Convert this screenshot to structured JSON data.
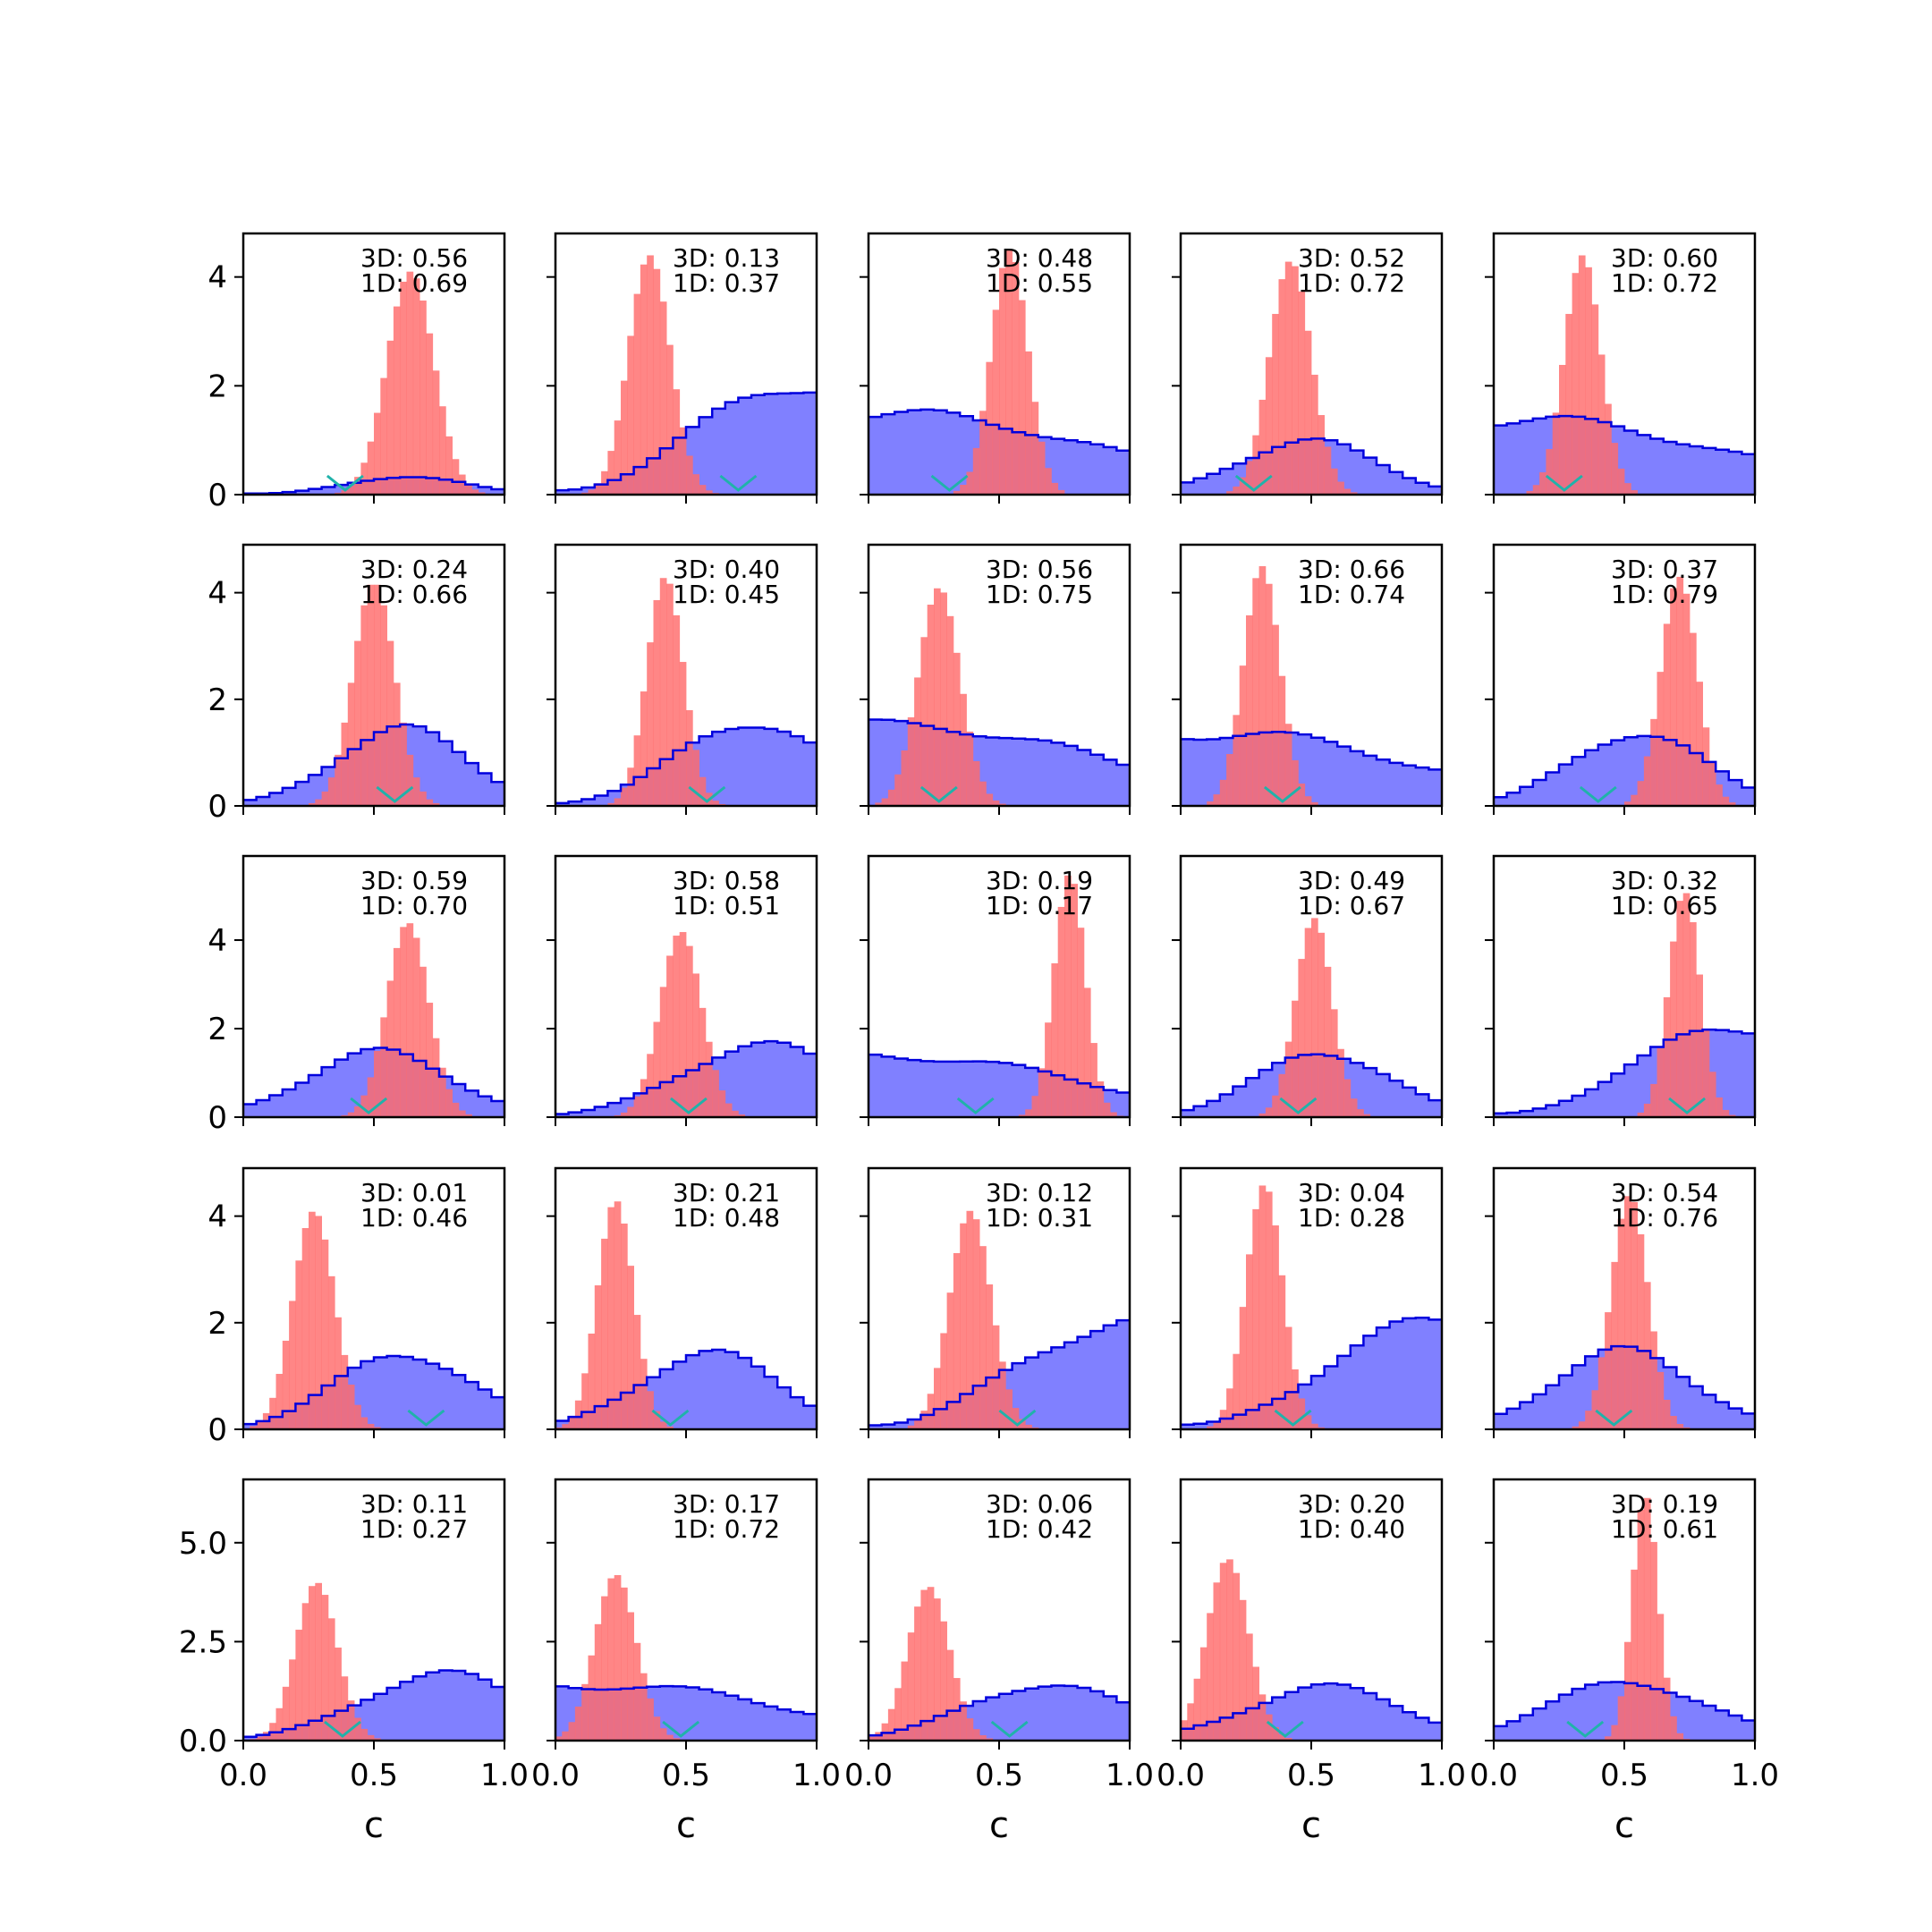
{
  "figure": {
    "xlabel": "c",
    "x_ticks": [
      "0.0",
      "0.5",
      "1.0"
    ],
    "xlim": [
      0,
      1
    ],
    "rows": [
      {
        "ylim": [
          0,
          4.8
        ],
        "y_ticks": [
          {
            "v": 0,
            "label": "0"
          },
          {
            "v": 2,
            "label": "2"
          },
          {
            "v": 4,
            "label": "4"
          }
        ]
      },
      {
        "ylim": [
          0,
          4.9
        ],
        "y_ticks": [
          {
            "v": 0,
            "label": "0"
          },
          {
            "v": 2,
            "label": "2"
          },
          {
            "v": 4,
            "label": "4"
          }
        ]
      },
      {
        "ylim": [
          0,
          5.9
        ],
        "y_ticks": [
          {
            "v": 0,
            "label": "0"
          },
          {
            "v": 2,
            "label": "2"
          },
          {
            "v": 4,
            "label": "4"
          }
        ]
      },
      {
        "ylim": [
          0,
          4.9
        ],
        "y_ticks": [
          {
            "v": 0,
            "label": "0"
          },
          {
            "v": 2,
            "label": "2"
          },
          {
            "v": 4,
            "label": "4"
          }
        ]
      },
      {
        "ylim": [
          0,
          6.6
        ],
        "y_ticks": [
          {
            "v": 0,
            "label": "0.0"
          },
          {
            "v": 2.5,
            "label": "2.5"
          },
          {
            "v": 5,
            "label": "5.0"
          }
        ]
      }
    ],
    "colors": {
      "prior_fill": "#8080ff",
      "prior_edge": "#0000dd",
      "posterior_fill": "#ff6b6b",
      "overlap": "#b34070",
      "marker": "#20b2aa",
      "axis": "#000000"
    }
  },
  "chart_data": [
    {
      "type": "histogram",
      "panel": "r1c1",
      "row": 0,
      "col": 0,
      "annotation_3d": "3D: 0.56",
      "annotation_1d": "1D: 0.69",
      "marker_x": 0.39,
      "prior_shape": [
        0,
        0.62,
        0.22,
        0.34
      ],
      "posterior": {
        "mean": 0.64,
        "sd": 0.09,
        "peak": 4.1
      }
    },
    {
      "type": "histogram",
      "panel": "r1c2",
      "row": 0,
      "col": 1,
      "annotation_3d": "3D: 0.13",
      "annotation_1d": "1D: 0.37",
      "marker_x": 0.7,
      "prior_shape": [
        1,
        0.95,
        0.36,
        0.08
      ],
      "posterior": {
        "mean": 0.36,
        "sd": 0.08,
        "peak": 4.4
      }
    },
    {
      "type": "histogram",
      "panel": "r1c3",
      "row": 0,
      "col": 2,
      "annotation_3d": "3D: 0.48",
      "annotation_1d": "1D: 0.55",
      "marker_x": 0.31,
      "prior_shape": [
        2,
        1.45,
        1.0,
        0.2
      ],
      "posterior": {
        "mean": 0.54,
        "sd": 0.07,
        "peak": 4.5
      }
    },
    {
      "type": "histogram",
      "panel": "r1c4",
      "row": 0,
      "col": 3,
      "annotation_3d": "3D: 0.52",
      "annotation_1d": "1D: 0.72",
      "marker_x": 0.28,
      "prior_shape": [
        0,
        0.48,
        0.26,
        1.0
      ],
      "posterior": {
        "mean": 0.42,
        "sd": 0.08,
        "peak": 4.3
      }
    },
    {
      "type": "histogram",
      "panel": "r1c5",
      "row": 0,
      "col": 4,
      "annotation_3d": "3D: 0.60",
      "annotation_1d": "1D: 0.72",
      "marker_x": 0.27,
      "prior_shape": [
        2,
        1.35,
        1.0,
        0.2
      ],
      "posterior": {
        "mean": 0.34,
        "sd": 0.07,
        "peak": 4.4
      }
    },
    {
      "type": "histogram",
      "panel": "r2c1",
      "row": 1,
      "col": 0,
      "annotation_3d": "3D: 0.24",
      "annotation_1d": "1D: 0.66",
      "marker_x": 0.58,
      "prior_shape": [
        0,
        0.6,
        0.25,
        1.45
      ],
      "posterior": {
        "mean": 0.5,
        "sd": 0.08,
        "peak": 4.2
      }
    },
    {
      "type": "histogram",
      "panel": "r2c2",
      "row": 1,
      "col": 1,
      "annotation_3d": "3D: 0.40",
      "annotation_1d": "1D: 0.45",
      "marker_x": 0.58,
      "prior_shape": [
        0,
        0.75,
        0.28,
        1.6
      ],
      "posterior": {
        "mean": 0.42,
        "sd": 0.07,
        "peak": 4.3
      }
    },
    {
      "type": "histogram",
      "panel": "r2c3",
      "row": 1,
      "col": 2,
      "annotation_3d": "3D: 0.56",
      "annotation_1d": "1D: 0.75",
      "marker_x": 0.27,
      "prior_shape": [
        2,
        1.5,
        1.0,
        0.2
      ],
      "posterior": {
        "mean": 0.27,
        "sd": 0.08,
        "peak": 4.1
      }
    },
    {
      "type": "histogram",
      "panel": "r2c4",
      "row": 1,
      "col": 3,
      "annotation_3d": "3D: 0.66",
      "annotation_1d": "1D: 0.74",
      "marker_x": 0.39,
      "prior_shape": [
        2,
        1.35,
        1.0,
        0.2
      ],
      "posterior": {
        "mean": 0.31,
        "sd": 0.07,
        "peak": 4.5
      }
    },
    {
      "type": "histogram",
      "panel": "r2c5",
      "row": 1,
      "col": 4,
      "annotation_3d": "3D: 0.37",
      "annotation_1d": "1D: 0.79",
      "marker_x": 0.4,
      "prior_shape": [
        0,
        0.55,
        0.25,
        1.4
      ],
      "posterior": {
        "mean": 0.71,
        "sd": 0.07,
        "peak": 4.3
      }
    },
    {
      "type": "histogram",
      "panel": "r3c1",
      "row": 2,
      "col": 0,
      "annotation_3d": "3D: 0.59",
      "annotation_1d": "1D: 0.70",
      "marker_x": 0.48,
      "prior_shape": [
        0,
        0.52,
        0.28,
        1.45
      ],
      "posterior": {
        "mean": 0.63,
        "sd": 0.08,
        "peak": 4.4
      }
    },
    {
      "type": "histogram",
      "panel": "r3c2",
      "row": 2,
      "col": 1,
      "annotation_3d": "3D: 0.58",
      "annotation_1d": "1D: 0.51",
      "marker_x": 0.51,
      "prior_shape": [
        0,
        0.78,
        0.3,
        1.65
      ],
      "posterior": {
        "mean": 0.48,
        "sd": 0.08,
        "peak": 4.2
      }
    },
    {
      "type": "histogram",
      "panel": "r3c3",
      "row": 2,
      "col": 2,
      "annotation_3d": "3D: 0.19",
      "annotation_1d": "1D: 0.17",
      "marker_x": 0.41,
      "prior_shape": [
        2,
        1.4,
        1.0,
        0.1
      ],
      "posterior": {
        "mean": 0.77,
        "sd": 0.06,
        "peak": 5.5
      }
    },
    {
      "type": "histogram",
      "panel": "r3c4",
      "row": 2,
      "col": 3,
      "annotation_3d": "3D: 0.49",
      "annotation_1d": "1D: 0.67",
      "marker_x": 0.45,
      "prior_shape": [
        0,
        0.55,
        0.25,
        1.5
      ],
      "posterior": {
        "mean": 0.51,
        "sd": 0.07,
        "peak": 4.5
      }
    },
    {
      "type": "histogram",
      "panel": "r3c5",
      "row": 2,
      "col": 4,
      "annotation_3d": "3D: 0.32",
      "annotation_1d": "1D: 0.65",
      "marker_x": 0.74,
      "prior_shape": [
        1,
        0.95,
        0.4,
        0.05
      ],
      "posterior": {
        "mean": 0.73,
        "sd": 0.06,
        "peak": 5.1
      }
    },
    {
      "type": "histogram",
      "panel": "r4c1",
      "row": 3,
      "col": 0,
      "annotation_3d": "3D: 0.01",
      "annotation_1d": "1D: 0.46",
      "marker_x": 0.7,
      "prior_shape": [
        0,
        0.62,
        0.26,
        1.45
      ],
      "posterior": {
        "mean": 0.27,
        "sd": 0.08,
        "peak": 4.1
      }
    },
    {
      "type": "histogram",
      "panel": "r4c2",
      "row": 3,
      "col": 1,
      "annotation_3d": "3D: 0.21",
      "annotation_1d": "1D: 0.48",
      "marker_x": 0.44,
      "prior_shape": [
        0,
        0.58,
        0.26,
        1.45
      ],
      "posterior": {
        "mean": 0.23,
        "sd": 0.07,
        "peak": 4.3
      }
    },
    {
      "type": "histogram",
      "panel": "r4c3",
      "row": 3,
      "col": 2,
      "annotation_3d": "3D: 0.12",
      "annotation_1d": "1D: 0.31",
      "marker_x": 0.57,
      "prior_shape": [
        1,
        1.0,
        0.38,
        0.05
      ],
      "posterior": {
        "mean": 0.39,
        "sd": 0.08,
        "peak": 4.1
      }
    },
    {
      "type": "histogram",
      "panel": "r4c4",
      "row": 3,
      "col": 3,
      "annotation_3d": "3D: 0.04",
      "annotation_1d": "1D: 0.28",
      "marker_x": 0.43,
      "prior_shape": [
        1,
        1.0,
        0.36,
        0.05
      ],
      "posterior": {
        "mean": 0.32,
        "sd": 0.07,
        "peak": 4.6
      }
    },
    {
      "type": "histogram",
      "panel": "r4c5",
      "row": 3,
      "col": 4,
      "annotation_3d": "3D: 0.54",
      "annotation_1d": "1D: 0.76",
      "marker_x": 0.46,
      "prior_shape": [
        0,
        0.5,
        0.27,
        1.45
      ],
      "posterior": {
        "mean": 0.52,
        "sd": 0.07,
        "peak": 4.4
      }
    },
    {
      "type": "histogram",
      "panel": "r5c1",
      "row": 4,
      "col": 0,
      "annotation_3d": "3D: 0.11",
      "annotation_1d": "1D: 0.27",
      "marker_x": 0.38,
      "prior_shape": [
        0,
        0.75,
        0.3,
        1.7
      ],
      "posterior": {
        "mean": 0.28,
        "sd": 0.08,
        "peak": 4.0
      }
    },
    {
      "type": "histogram",
      "panel": "r5c2",
      "row": 4,
      "col": 1,
      "annotation_3d": "3D: 0.17",
      "annotation_1d": "1D: 0.72",
      "marker_x": 0.48,
      "prior_shape": [
        2,
        1.4,
        1.0,
        0.2
      ],
      "posterior": {
        "mean": 0.23,
        "sd": 0.08,
        "peak": 4.2
      }
    },
    {
      "type": "histogram",
      "panel": "r5c3",
      "row": 4,
      "col": 2,
      "annotation_3d": "3D: 0.06",
      "annotation_1d": "1D: 0.42",
      "marker_x": 0.54,
      "prior_shape": [
        0,
        0.68,
        0.3,
        1.45
      ],
      "posterior": {
        "mean": 0.23,
        "sd": 0.08,
        "peak": 3.9
      }
    },
    {
      "type": "histogram",
      "panel": "r5c4",
      "row": 4,
      "col": 3,
      "annotation_3d": "3D: 0.20",
      "annotation_1d": "1D: 0.40",
      "marker_x": 0.4,
      "prior_shape": [
        0,
        0.55,
        0.3,
        1.35
      ],
      "posterior": {
        "mean": 0.18,
        "sd": 0.08,
        "peak": 4.6
      }
    },
    {
      "type": "histogram",
      "panel": "r5c5",
      "row": 4,
      "col": 4,
      "annotation_3d": "3D: 0.19",
      "annotation_1d": "1D: 0.61",
      "marker_x": 0.35,
      "prior_shape": [
        0,
        0.52,
        0.3,
        1.5
      ],
      "posterior": {
        "mean": 0.58,
        "sd": 0.05,
        "peak": 6.2
      }
    }
  ]
}
